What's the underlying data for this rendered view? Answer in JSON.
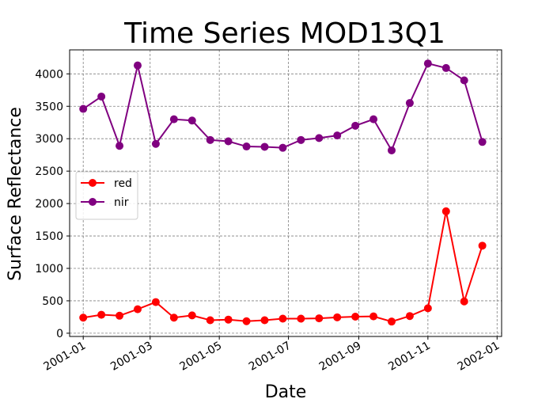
{
  "chart_data": {
    "type": "line",
    "title": "Time Series MOD13Q1",
    "xlabel": "Date",
    "ylabel": "Surface Reflectance",
    "x_ticks": [
      "2001-01",
      "2001-03",
      "2001-05",
      "2001-07",
      "2001-09",
      "2001-11",
      "2002-01"
    ],
    "y_ticks": [
      0,
      500,
      1000,
      1500,
      2000,
      2500,
      3000,
      3500,
      4000
    ],
    "xlim": [
      "2000-12-20",
      "2002-01-05"
    ],
    "ylim": [
      -50,
      4370
    ],
    "grid": true,
    "legend_position": "center-left",
    "x": [
      "2001-01-01",
      "2001-01-17",
      "2001-02-02",
      "2001-02-18",
      "2001-03-06",
      "2001-03-22",
      "2001-04-07",
      "2001-04-23",
      "2001-05-09",
      "2001-05-25",
      "2001-06-10",
      "2001-06-26",
      "2001-07-12",
      "2001-07-28",
      "2001-08-13",
      "2001-08-29",
      "2001-09-14",
      "2001-09-30",
      "2001-10-16",
      "2001-11-01",
      "2001-11-17",
      "2001-12-03",
      "2001-12-19"
    ],
    "series": [
      {
        "name": "red",
        "color": "#ff0000",
        "values": [
          240,
          285,
          270,
          370,
          480,
          240,
          275,
          200,
          210,
          185,
          200,
          225,
          225,
          230,
          245,
          255,
          260,
          180,
          265,
          385,
          1880,
          490,
          1350
        ]
      },
      {
        "name": "nir",
        "color": "#800080",
        "values": [
          3460,
          3650,
          2890,
          4130,
          2920,
          3300,
          3280,
          2980,
          2960,
          2880,
          2875,
          2860,
          2980,
          3010,
          3050,
          3200,
          3300,
          2820,
          3550,
          4160,
          4090,
          3900,
          2950
        ]
      }
    ]
  }
}
